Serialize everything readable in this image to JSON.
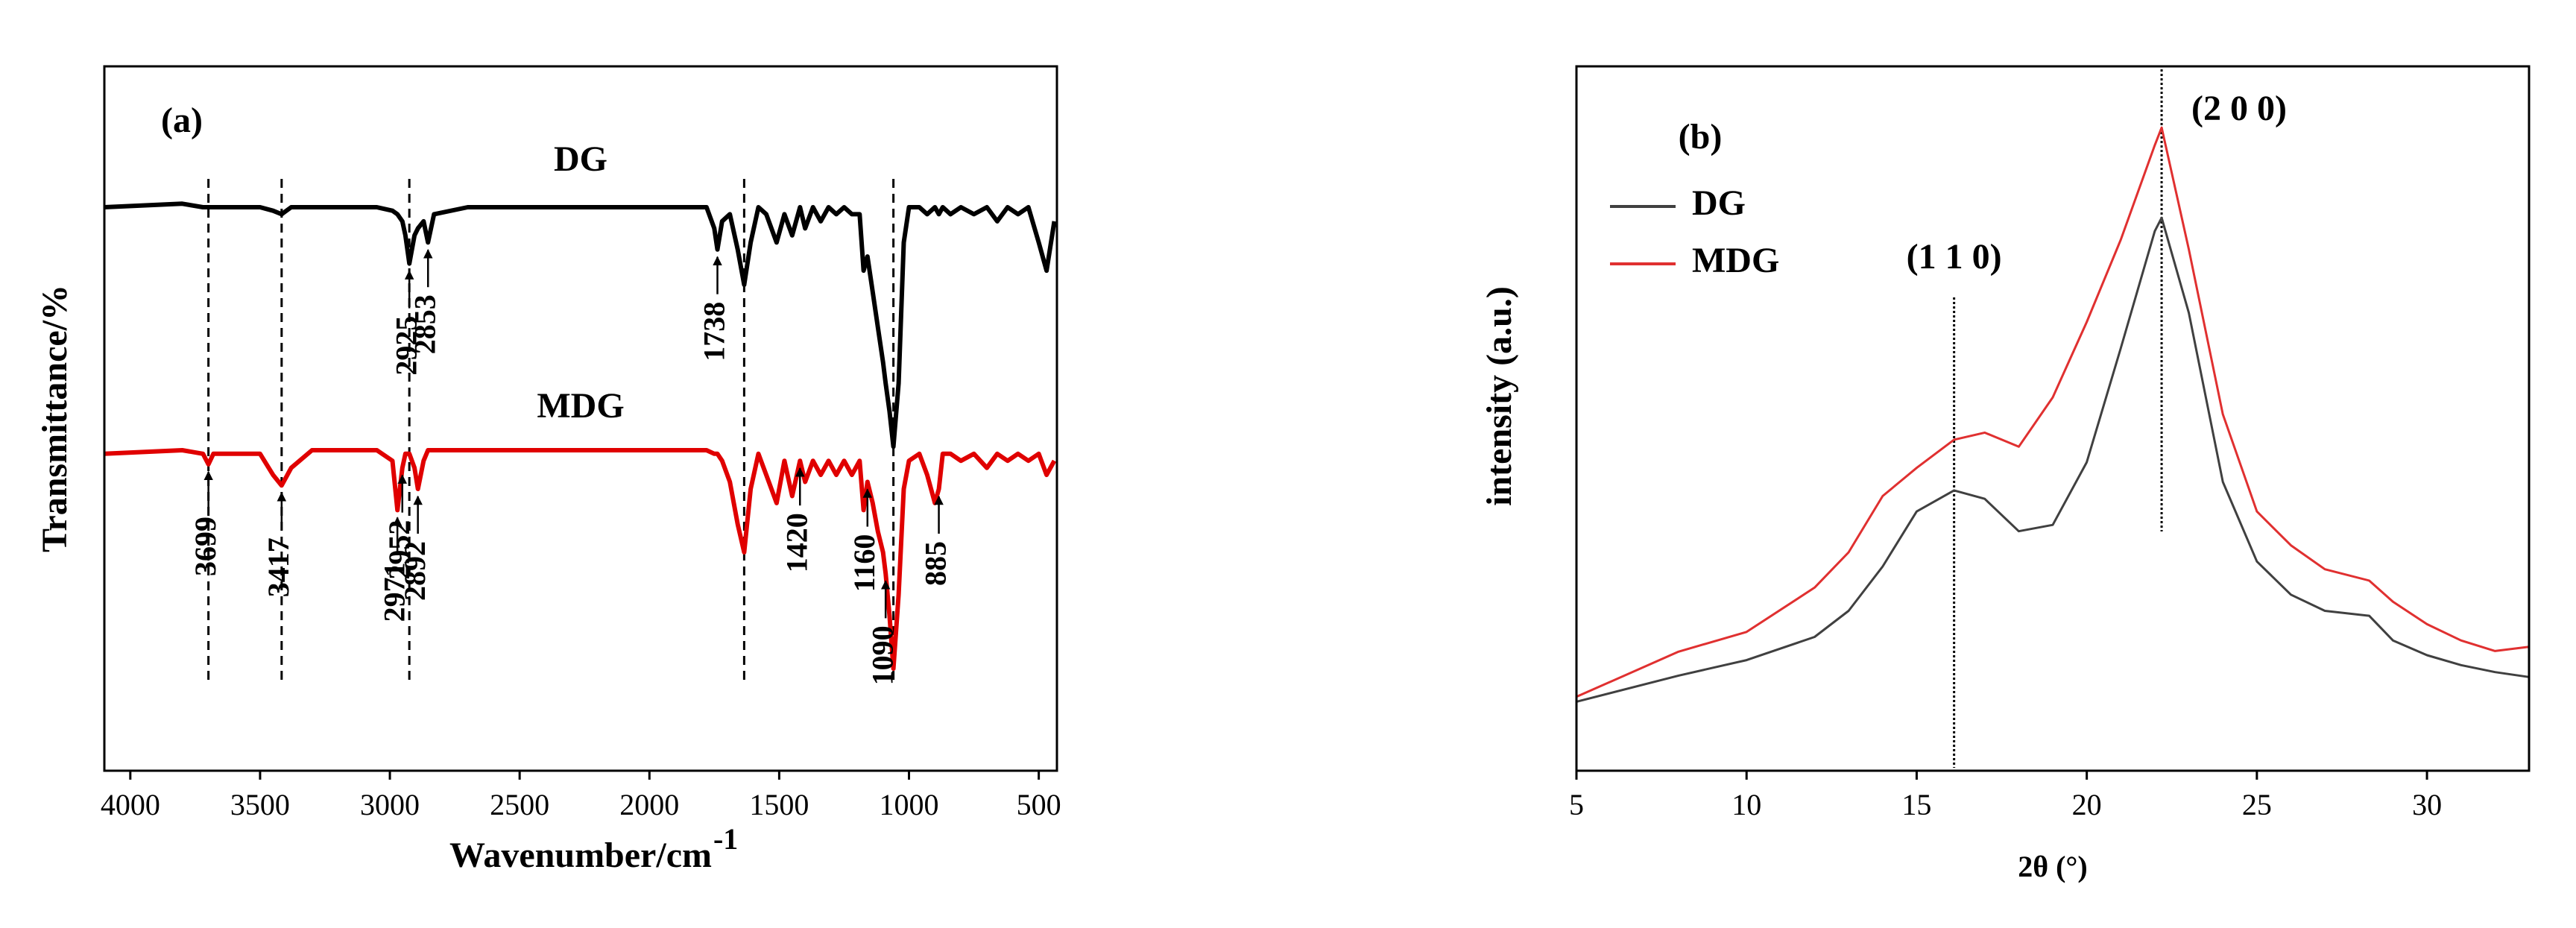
{
  "chart_data": [
    {
      "type": "line",
      "panel": "(a)",
      "xlabel": "Wavenumber/cm",
      "xlabel_sup": "-1",
      "ylabel": "Transmittance/%",
      "xlim": [
        4100,
        430
      ],
      "xticks": [
        4000,
        3500,
        3000,
        2500,
        2000,
        1500,
        1000,
        500
      ],
      "ylim": [
        0,
        100
      ],
      "x": [
        4100,
        3800,
        3720,
        3699,
        3680,
        3500,
        3450,
        3417,
        3380,
        3300,
        3050,
        2990,
        2971,
        2952,
        2940,
        2925,
        2905,
        2892,
        2870,
        2853,
        2830,
        2700,
        2000,
        1780,
        1750,
        1738,
        1720,
        1690,
        1660,
        1635,
        1610,
        1580,
        1550,
        1510,
        1480,
        1450,
        1420,
        1400,
        1370,
        1340,
        1310,
        1280,
        1250,
        1220,
        1190,
        1175,
        1160,
        1140,
        1120,
        1100,
        1090,
        1075,
        1060,
        1040,
        1020,
        1000,
        960,
        930,
        900,
        885,
        870,
        840,
        800,
        750,
        700,
        660,
        620,
        580,
        540,
        500,
        470,
        440
      ],
      "series": [
        {
          "name": "DG",
          "color": "#000000",
          "values": [
            80,
            80.5,
            80,
            80,
            80,
            80,
            79.5,
            79,
            80,
            80,
            80,
            79.5,
            79,
            78,
            76,
            72,
            76,
            77,
            78,
            75,
            79,
            80,
            80,
            80,
            77,
            74,
            78,
            79,
            74,
            69,
            75,
            80,
            79,
            75,
            79,
            76,
            80,
            77,
            80,
            78,
            80,
            79,
            80,
            79,
            79,
            71,
            73,
            68,
            63,
            58,
            55,
            51,
            46,
            55,
            75,
            80,
            80,
            79,
            80,
            79,
            80,
            79,
            80,
            79,
            80,
            78,
            80,
            79,
            80,
            75,
            71,
            78
          ]
        },
        {
          "name": "MDG",
          "color": "#e00000",
          "values": [
            45,
            45.5,
            45,
            43.5,
            45,
            45,
            42,
            40.5,
            43,
            45.5,
            45.5,
            44,
            37,
            43,
            45,
            45,
            43,
            40,
            44,
            45.5,
            45.5,
            45.5,
            45.5,
            45.5,
            45,
            45,
            44,
            41,
            35,
            31,
            40,
            45,
            42,
            38,
            44,
            39,
            44,
            41,
            44,
            42,
            44,
            42,
            44,
            42,
            44,
            37,
            41,
            38,
            34,
            31,
            28,
            22,
            14.5,
            25,
            40,
            44,
            45,
            42,
            38,
            40,
            45,
            45,
            44,
            45,
            43,
            45,
            44,
            45,
            44,
            45,
            42,
            44
          ]
        }
      ],
      "dg_peaks": [
        2925,
        2853,
        1738
      ],
      "mdg_peaks": [
        3699,
        3417,
        2952,
        2971,
        2892,
        1420,
        1160,
        1090,
        885
      ],
      "reference_lines": [
        3699,
        3417,
        2925,
        1635,
        1060
      ]
    },
    {
      "type": "line",
      "panel": "(b)",
      "xlabel": "2θ (°)",
      "ylabel": "intensity (a.u.)",
      "xlim": [
        5,
        33
      ],
      "xticks": [
        5,
        10,
        15,
        20,
        25,
        30
      ],
      "ylim": [
        0,
        100
      ],
      "legend": "upper left",
      "x": [
        5,
        8,
        10,
        12,
        13,
        14,
        15,
        16.1,
        17,
        18,
        19,
        20,
        21,
        22,
        22.2,
        23,
        24,
        25,
        26,
        27,
        28.3,
        29,
        30,
        31,
        32,
        33
      ],
      "series": [
        {
          "name": "DG",
          "color": "#404040",
          "values": [
            9.8,
            13.5,
            15.7,
            19,
            22.7,
            29,
            36.8,
            39.8,
            38.6,
            34,
            34.9,
            43.8,
            60,
            76.6,
            78.5,
            65,
            41,
            29.7,
            25,
            22.7,
            22,
            18.5,
            16.4,
            15,
            14,
            13.3
          ]
        },
        {
          "name": "MDG",
          "color": "#e03030",
          "values": [
            10.5,
            16.9,
            19.7,
            26,
            31,
            39,
            43,
            47,
            48,
            46,
            53,
            63.7,
            75.4,
            88.8,
            91.3,
            74,
            50.6,
            36.8,
            32,
            28.6,
            27,
            24,
            20.8,
            18.5,
            17,
            17.6
          ]
        }
      ],
      "annotations": [
        {
          "text": "(1 1 0)",
          "x": 16.1
        },
        {
          "text": "(2 0 0)",
          "x": 22.2
        }
      ]
    }
  ]
}
